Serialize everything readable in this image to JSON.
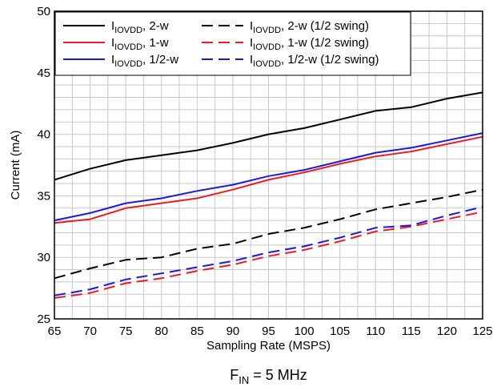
{
  "chart_data": {
    "type": "line",
    "xlabel": "Sampling Rate (MSPS)",
    "ylabel": "Current (mA)",
    "caption": {
      "main": "F",
      "sub": "IN",
      "rest": " = 5 MHz"
    },
    "xlim": [
      65,
      125
    ],
    "ylim": [
      25,
      50
    ],
    "x_ticks": [
      65,
      70,
      75,
      80,
      85,
      90,
      95,
      100,
      105,
      110,
      115,
      120,
      125
    ],
    "y_ticks": [
      25,
      30,
      35,
      40,
      45,
      50
    ],
    "x_minor_step": 2.5,
    "y_minor_step": 1,
    "grid": true,
    "legend_position": "top-left",
    "x": [
      65,
      70,
      75,
      80,
      85,
      90,
      95,
      100,
      105,
      110,
      115,
      120,
      125
    ],
    "series": [
      {
        "name_main": "I",
        "name_sub": "IOVDD",
        "name_rest": ", 2-w",
        "color": "#000000",
        "dash": "solid",
        "values": [
          36.3,
          37.2,
          37.9,
          38.3,
          38.7,
          39.3,
          40.0,
          40.5,
          41.2,
          41.9,
          42.2,
          42.9,
          43.4
        ]
      },
      {
        "name_main": "I",
        "name_sub": "IOVDD",
        "name_rest": ", 1-w",
        "color": "#ed1c24",
        "dash": "solid",
        "values": [
          32.8,
          33.1,
          34.0,
          34.4,
          34.8,
          35.5,
          36.3,
          36.9,
          37.6,
          38.2,
          38.6,
          39.2,
          39.8
        ]
      },
      {
        "name_main": "I",
        "name_sub": "IOVDD",
        "name_rest": ", 1/2-w",
        "color": "#1a1adc",
        "dash": "solid",
        "values": [
          33.0,
          33.6,
          34.4,
          34.8,
          35.4,
          35.9,
          36.6,
          37.1,
          37.8,
          38.5,
          38.9,
          39.5,
          40.1
        ]
      },
      {
        "name_main": "I",
        "name_sub": "IOVDD",
        "name_rest": ", 2-w (1/2 swing)",
        "color": "#000000",
        "dash": "dashed",
        "values": [
          28.3,
          29.1,
          29.8,
          30.0,
          30.7,
          31.1,
          31.9,
          32.4,
          33.1,
          33.9,
          34.4,
          34.9,
          35.5
        ]
      },
      {
        "name_main": "I",
        "name_sub": "IOVDD",
        "name_rest": ", 1-w (1/2 swing)",
        "color": "#ed1c24",
        "dash": "dashed",
        "values": [
          26.7,
          27.1,
          27.9,
          28.3,
          28.9,
          29.4,
          30.1,
          30.6,
          31.3,
          32.1,
          32.5,
          33.1,
          33.7
        ]
      },
      {
        "name_main": "I",
        "name_sub": "IOVDD",
        "name_rest": ", 1/2-w (1/2 swing)",
        "color": "#1a1adc",
        "dash": "dashed",
        "values": [
          26.9,
          27.4,
          28.2,
          28.7,
          29.2,
          29.7,
          30.4,
          30.9,
          31.6,
          32.4,
          32.6,
          33.4,
          34.1
        ]
      }
    ]
  }
}
